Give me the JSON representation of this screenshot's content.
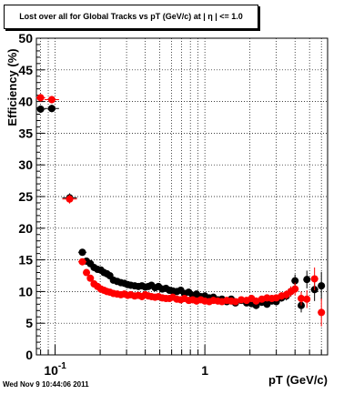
{
  "chart_data": {
    "type": "scatter",
    "title": "Lost over all for Global Tracks vs pT (GeV/c) at |  η | <= 1.0",
    "xlabel": "pT (GeV/c)",
    "ylabel": "Efficiency (%)",
    "xscale": "log",
    "xlim": [
      0.075,
      6.6
    ],
    "ylim": [
      0,
      50
    ],
    "y_ticks": [
      "0",
      "5",
      "10",
      "15",
      "20",
      "25",
      "30",
      "35",
      "40",
      "45",
      "50"
    ],
    "x_tick_labels": [
      {
        "value": 0.1,
        "base": "10",
        "exp": "-1"
      },
      {
        "value": 1,
        "base": "1",
        "exp": ""
      }
    ],
    "grid": true,
    "legend": "none",
    "series": [
      {
        "color": "#000000",
        "x": [
          0.08,
          0.095,
          0.125,
          0.152,
          0.162,
          0.172,
          0.182,
          0.192,
          0.202,
          0.212,
          0.222,
          0.232,
          0.245,
          0.26,
          0.275,
          0.29,
          0.305,
          0.32,
          0.34,
          0.36,
          0.38,
          0.4,
          0.42,
          0.44,
          0.465,
          0.49,
          0.52,
          0.55,
          0.58,
          0.61,
          0.65,
          0.69,
          0.73,
          0.78,
          0.83,
          0.88,
          0.94,
          1.0,
          1.07,
          1.14,
          1.22,
          1.3,
          1.4,
          1.5,
          1.6,
          1.75,
          1.9,
          2.05,
          2.2,
          2.4,
          2.6,
          2.8,
          3.0,
          3.25,
          3.5,
          3.75,
          4.0,
          4.4,
          4.8,
          5.4,
          6.0
        ],
        "y": [
          38.8,
          38.9,
          24.8,
          16.2,
          14.8,
          14.4,
          13.8,
          13.5,
          13.4,
          13.0,
          12.8,
          12.5,
          11.8,
          11.6,
          11.4,
          11.3,
          11.1,
          11.0,
          10.9,
          10.8,
          10.9,
          10.7,
          10.8,
          11.0,
          10.6,
          10.8,
          10.4,
          10.5,
          10.2,
          10.1,
          10.0,
          10.2,
          9.7,
          9.9,
          9.4,
          9.6,
          9.2,
          9.3,
          9.0,
          9.1,
          8.7,
          8.8,
          8.4,
          8.8,
          8.2,
          8.6,
          8.2,
          8.1,
          7.8,
          8.3,
          8.0,
          8.5,
          8.4,
          9.0,
          9.3,
          10.0,
          11.7,
          7.8,
          11.9,
          10.3,
          10.9
        ],
        "yerr": [
          0.6,
          0.6,
          0.7,
          0.5,
          0.5,
          0.4,
          0.4,
          0.4,
          0.4,
          0.4,
          0.4,
          0.4,
          0.3,
          0.3,
          0.3,
          0.3,
          0.3,
          0.3,
          0.3,
          0.3,
          0.3,
          0.3,
          0.3,
          0.3,
          0.3,
          0.3,
          0.3,
          0.3,
          0.3,
          0.3,
          0.3,
          0.3,
          0.3,
          0.3,
          0.3,
          0.3,
          0.3,
          0.3,
          0.3,
          0.3,
          0.3,
          0.3,
          0.3,
          0.3,
          0.3,
          0.3,
          0.3,
          0.3,
          0.3,
          0.4,
          0.4,
          0.4,
          0.5,
          0.6,
          0.7,
          0.8,
          1.0,
          1.1,
          1.4,
          1.8,
          2.2
        ]
      },
      {
        "color": "#ff0000",
        "x": [
          0.08,
          0.095,
          0.125,
          0.152,
          0.162,
          0.172,
          0.182,
          0.192,
          0.202,
          0.212,
          0.222,
          0.232,
          0.245,
          0.26,
          0.275,
          0.29,
          0.305,
          0.32,
          0.34,
          0.36,
          0.38,
          0.4,
          0.42,
          0.44,
          0.465,
          0.49,
          0.52,
          0.55,
          0.58,
          0.61,
          0.65,
          0.69,
          0.73,
          0.78,
          0.83,
          0.88,
          0.94,
          1.0,
          1.07,
          1.14,
          1.22,
          1.3,
          1.4,
          1.5,
          1.6,
          1.75,
          1.9,
          2.05,
          2.2,
          2.4,
          2.6,
          2.8,
          3.0,
          3.25,
          3.5,
          3.75,
          4.0,
          4.4,
          4.8,
          5.4,
          6.0
        ],
        "y": [
          40.6,
          40.3,
          24.6,
          14.7,
          13.0,
          12.1,
          11.2,
          10.8,
          10.4,
          10.2,
          10.0,
          9.9,
          9.7,
          9.6,
          9.5,
          9.6,
          9.4,
          9.5,
          9.3,
          9.4,
          9.2,
          9.5,
          9.3,
          9.2,
          9.1,
          9.2,
          9.0,
          8.9,
          8.9,
          9.1,
          8.8,
          8.7,
          8.9,
          8.6,
          8.7,
          8.5,
          8.7,
          8.5,
          8.4,
          8.6,
          8.5,
          8.4,
          8.6,
          8.5,
          8.4,
          8.7,
          8.6,
          8.9,
          8.5,
          8.8,
          9.0,
          8.9,
          9.0,
          9.3,
          9.5,
          10.0,
          10.4,
          8.9,
          8.8,
          12.0,
          6.7
        ],
        "yerr": [
          0.6,
          0.6,
          0.7,
          0.5,
          0.5,
          0.4,
          0.4,
          0.4,
          0.3,
          0.3,
          0.3,
          0.3,
          0.3,
          0.3,
          0.3,
          0.3,
          0.3,
          0.3,
          0.3,
          0.3,
          0.3,
          0.3,
          0.3,
          0.3,
          0.3,
          0.3,
          0.3,
          0.3,
          0.3,
          0.3,
          0.3,
          0.3,
          0.3,
          0.3,
          0.3,
          0.3,
          0.3,
          0.3,
          0.3,
          0.3,
          0.3,
          0.3,
          0.3,
          0.3,
          0.3,
          0.3,
          0.3,
          0.3,
          0.3,
          0.4,
          0.4,
          0.4,
          0.5,
          0.6,
          0.7,
          0.8,
          1.0,
          1.1,
          1.4,
          1.8,
          2.2
        ]
      }
    ]
  },
  "footer": {
    "timestamp": "Wed Nov  9 10:44:06 2011"
  }
}
